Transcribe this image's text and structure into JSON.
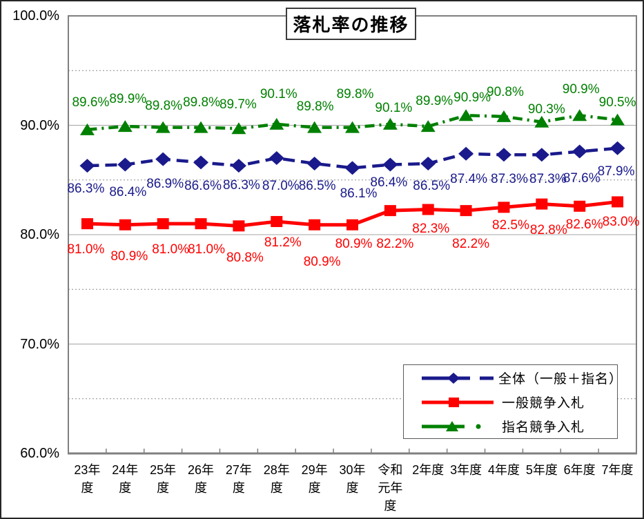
{
  "chart_data": {
    "type": "line",
    "title": "落札率の推移",
    "categories": [
      "23年度",
      "24年度",
      "25年度",
      "26年度",
      "27年度",
      "28年度",
      "29年度",
      "30年度",
      "令和元年度",
      "2年度",
      "3年度",
      "4年度",
      "5年度",
      "6年度",
      "7年度"
    ],
    "category_label_lines": [
      [
        "23年",
        "度"
      ],
      [
        "24年",
        "度"
      ],
      [
        "25年",
        "度"
      ],
      [
        "26年",
        "度"
      ],
      [
        "27年",
        "度"
      ],
      [
        "28年",
        "度"
      ],
      [
        "29年",
        "度"
      ],
      [
        "30年",
        "度"
      ],
      [
        "令和",
        "元年",
        "度"
      ],
      [
        "2年度"
      ],
      [
        "3年度"
      ],
      [
        "4年度"
      ],
      [
        "5年度"
      ],
      [
        "6年度"
      ],
      [
        "7年度"
      ]
    ],
    "ylim": [
      60,
      100
    ],
    "ytick_major_step": 10,
    "ytick_minor_step": 5,
    "ytick_labels": [
      "100.0%",
      "90.0%",
      "80.0%",
      "70.0%",
      "60.0%"
    ],
    "grid": {
      "major_style": "solid",
      "minor_style": "dotted"
    },
    "legend_position": "inside-bottom-right",
    "series": [
      {
        "name": "全体（一般＋指名）",
        "color": "#1a1a8c",
        "marker": "diamond",
        "line_style": "dashed",
        "values": [
          86.3,
          86.4,
          86.9,
          86.6,
          86.3,
          87.0,
          86.5,
          86.1,
          86.4,
          86.5,
          87.4,
          87.3,
          87.3,
          87.6,
          87.9
        ],
        "labels": [
          "86.3%",
          "86.4%",
          "86.9%",
          "86.6%",
          "86.3%",
          "87.0%",
          "86.5%",
          "86.1%",
          "86.4%",
          "86.5%",
          "87.4%",
          "87.3%",
          "87.3%",
          "87.6%",
          "87.9%"
        ],
        "label_offsets": {
          "dx": [
            -2,
            4,
            3,
            3,
            4,
            6,
            4,
            9,
            -2,
            5,
            4,
            8,
            9,
            3,
            -2
          ],
          "dy": [
            34,
            40,
            36,
            35,
            29,
            41,
            33,
            38,
            26,
            33,
            37,
            36,
            36,
            39,
            34
          ]
        }
      },
      {
        "name": "一般競争入札",
        "color": "#ff0000",
        "marker": "square",
        "line_style": "solid",
        "values": [
          81.0,
          80.9,
          81.0,
          81.0,
          80.8,
          81.2,
          80.9,
          80.9,
          82.2,
          82.3,
          82.2,
          82.5,
          82.8,
          82.6,
          83.0
        ],
        "labels": [
          "81.0%",
          "80.9%",
          "81.0%",
          "81.0%",
          "80.8%",
          "81.2%",
          "80.9%",
          "80.9%",
          "82.2%",
          "82.3%",
          "82.2%",
          "82.5%",
          "82.8%",
          "82.6%",
          "83.0%"
        ],
        "label_offsets": {
          "dx": [
            -2,
            6,
            11,
            8,
            9,
            9,
            11,
            2,
            7,
            4,
            7,
            10,
            10,
            7,
            5
          ],
          "dy": [
            38,
            46,
            38,
            38,
            47,
            31,
            54,
            28,
            49,
            28,
            49,
            27,
            38,
            27,
            30
          ]
        }
      },
      {
        "name": "指名競争入札",
        "color": "#008000",
        "marker": "triangle",
        "line_style": "dashdot",
        "values": [
          89.6,
          89.9,
          89.8,
          89.8,
          89.7,
          90.1,
          89.8,
          89.8,
          90.1,
          89.9,
          90.9,
          90.8,
          90.3,
          90.9,
          90.5
        ],
        "labels": [
          "89.6%",
          "89.9%",
          "89.8%",
          "89.8%",
          "89.7%",
          "90.1%",
          "89.8%",
          "89.8%",
          "90.1%",
          "89.9%",
          "90.9%",
          "90.8%",
          "90.3%",
          "90.9%",
          "90.5%"
        ],
        "label_offsets": {
          "dx": [
            5,
            4,
            1,
            1,
            -1,
            3,
            1,
            4,
            5,
            9,
            9,
            2,
            7,
            2,
            0
          ],
          "dy": [
            -39,
            -39,
            -31,
            -36,
            -34,
            -43,
            -30,
            -48,
            -23,
            -36,
            -25,
            -35,
            -18,
            -37,
            -25
          ]
        }
      }
    ]
  }
}
